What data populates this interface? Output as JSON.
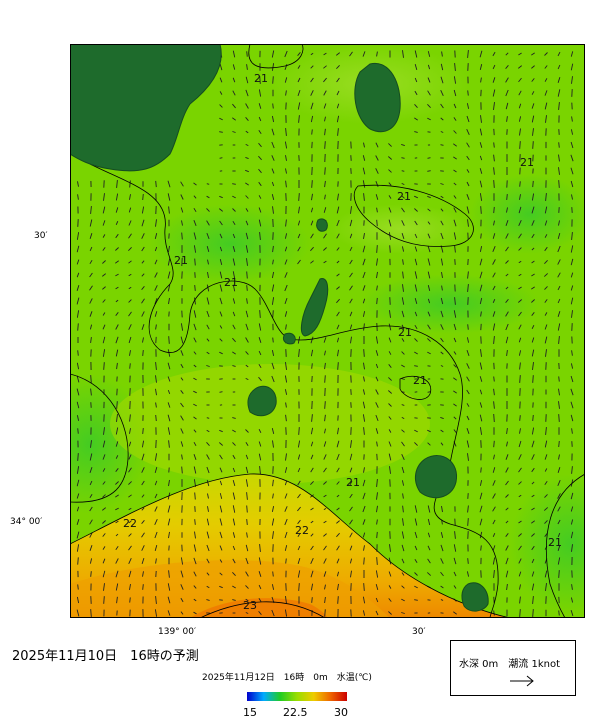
{
  "forecast_title": "2025年11月10日　16時の予測",
  "chart_caption": "2025年11月12日　16時　0m　水温(℃)",
  "legend": {
    "label": "水深 0m　潮流 1knot",
    "arrow_icon": "current-arrow-icon"
  },
  "colorbar": {
    "ticks": [
      "15",
      "22.5",
      "30"
    ],
    "colors": [
      "#0000cc",
      "#00aaff",
      "#22cc22",
      "#99dd00",
      "#eecc00",
      "#ee6600",
      "#cc0000"
    ]
  },
  "axes": {
    "lat_labels": [
      "30′",
      "34° 00′"
    ],
    "lon_labels": [
      "139° 00′",
      "30′"
    ]
  },
  "contour_labels": [
    "21",
    "21",
    "21",
    "21",
    "21",
    "21",
    "21",
    "21",
    "21",
    "22",
    "22",
    "23"
  ],
  "colors": {
    "land": "#1e6b2c",
    "water_base": "#7ad400",
    "contour": "#000000"
  }
}
